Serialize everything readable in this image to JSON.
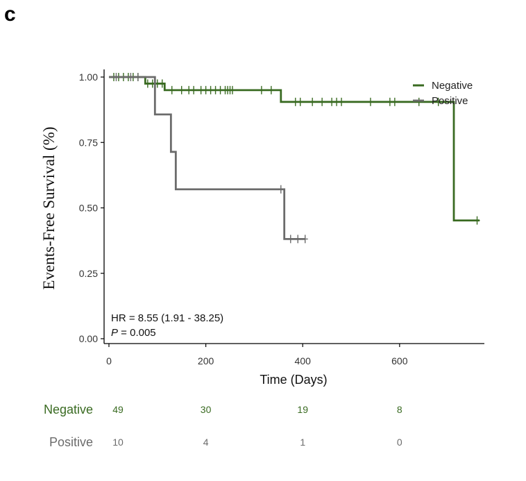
{
  "panel_label": "c",
  "colors": {
    "negative": "#3a6b22",
    "positive": "#6b6b6b",
    "axis": "#000000"
  },
  "chart_data": {
    "type": "line",
    "chart_subtype": "kaplan-meier step",
    "xlabel": "Time (Days)",
    "ylabel": "Events-Free Survival (%)",
    "xlim": [
      -10,
      775
    ],
    "ylim": [
      0,
      1.0
    ],
    "x_ticks": [
      0,
      200,
      400,
      600
    ],
    "y_ticks": [
      0.0,
      0.25,
      0.5,
      0.75,
      1.0
    ],
    "y_tick_labels": [
      "0.00",
      "0.25",
      "0.50",
      "0.75",
      "1.00"
    ],
    "grid": false,
    "legend_position": "top-right",
    "series": [
      {
        "name": "Negative",
        "color": "#3a6b22",
        "steps": [
          [
            0,
            1.0
          ],
          [
            75,
            0.975
          ],
          [
            115,
            0.95
          ],
          [
            355,
            0.905
          ],
          [
            712,
            0.452
          ],
          [
            765,
            0.452
          ]
        ],
        "censor_times": [
          10,
          20,
          30,
          40,
          50,
          60,
          80,
          90,
          100,
          110,
          130,
          150,
          165,
          175,
          190,
          200,
          210,
          220,
          230,
          240,
          245,
          250,
          255,
          315,
          335,
          385,
          395,
          420,
          440,
          460,
          470,
          480,
          540,
          580,
          590,
          640,
          680,
          760
        ]
      },
      {
        "name": "Positive",
        "color": "#6b6b6b",
        "steps": [
          [
            0,
            1.0
          ],
          [
            95,
            0.857
          ],
          [
            128,
            0.714
          ],
          [
            138,
            0.571
          ],
          [
            362,
            0.381
          ],
          [
            405,
            0.381
          ]
        ],
        "censor_times": [
          15,
          45,
          60,
          355,
          375,
          390,
          405
        ]
      }
    ],
    "annotations": {
      "hr_text": "HR = 8.55 (1.91 -  38.25)",
      "p_label": "P",
      "p_value_text": " = 0.005"
    }
  },
  "risk_table": {
    "times": [
      0,
      200,
      400,
      600
    ],
    "rows": [
      {
        "label": "Negative",
        "values": [
          "49",
          "30",
          "19",
          "8"
        ],
        "color": "#3a6b22"
      },
      {
        "label": "Positive",
        "values": [
          "10",
          "4",
          "1",
          "0"
        ],
        "color": "#6b6b6b"
      }
    ]
  }
}
